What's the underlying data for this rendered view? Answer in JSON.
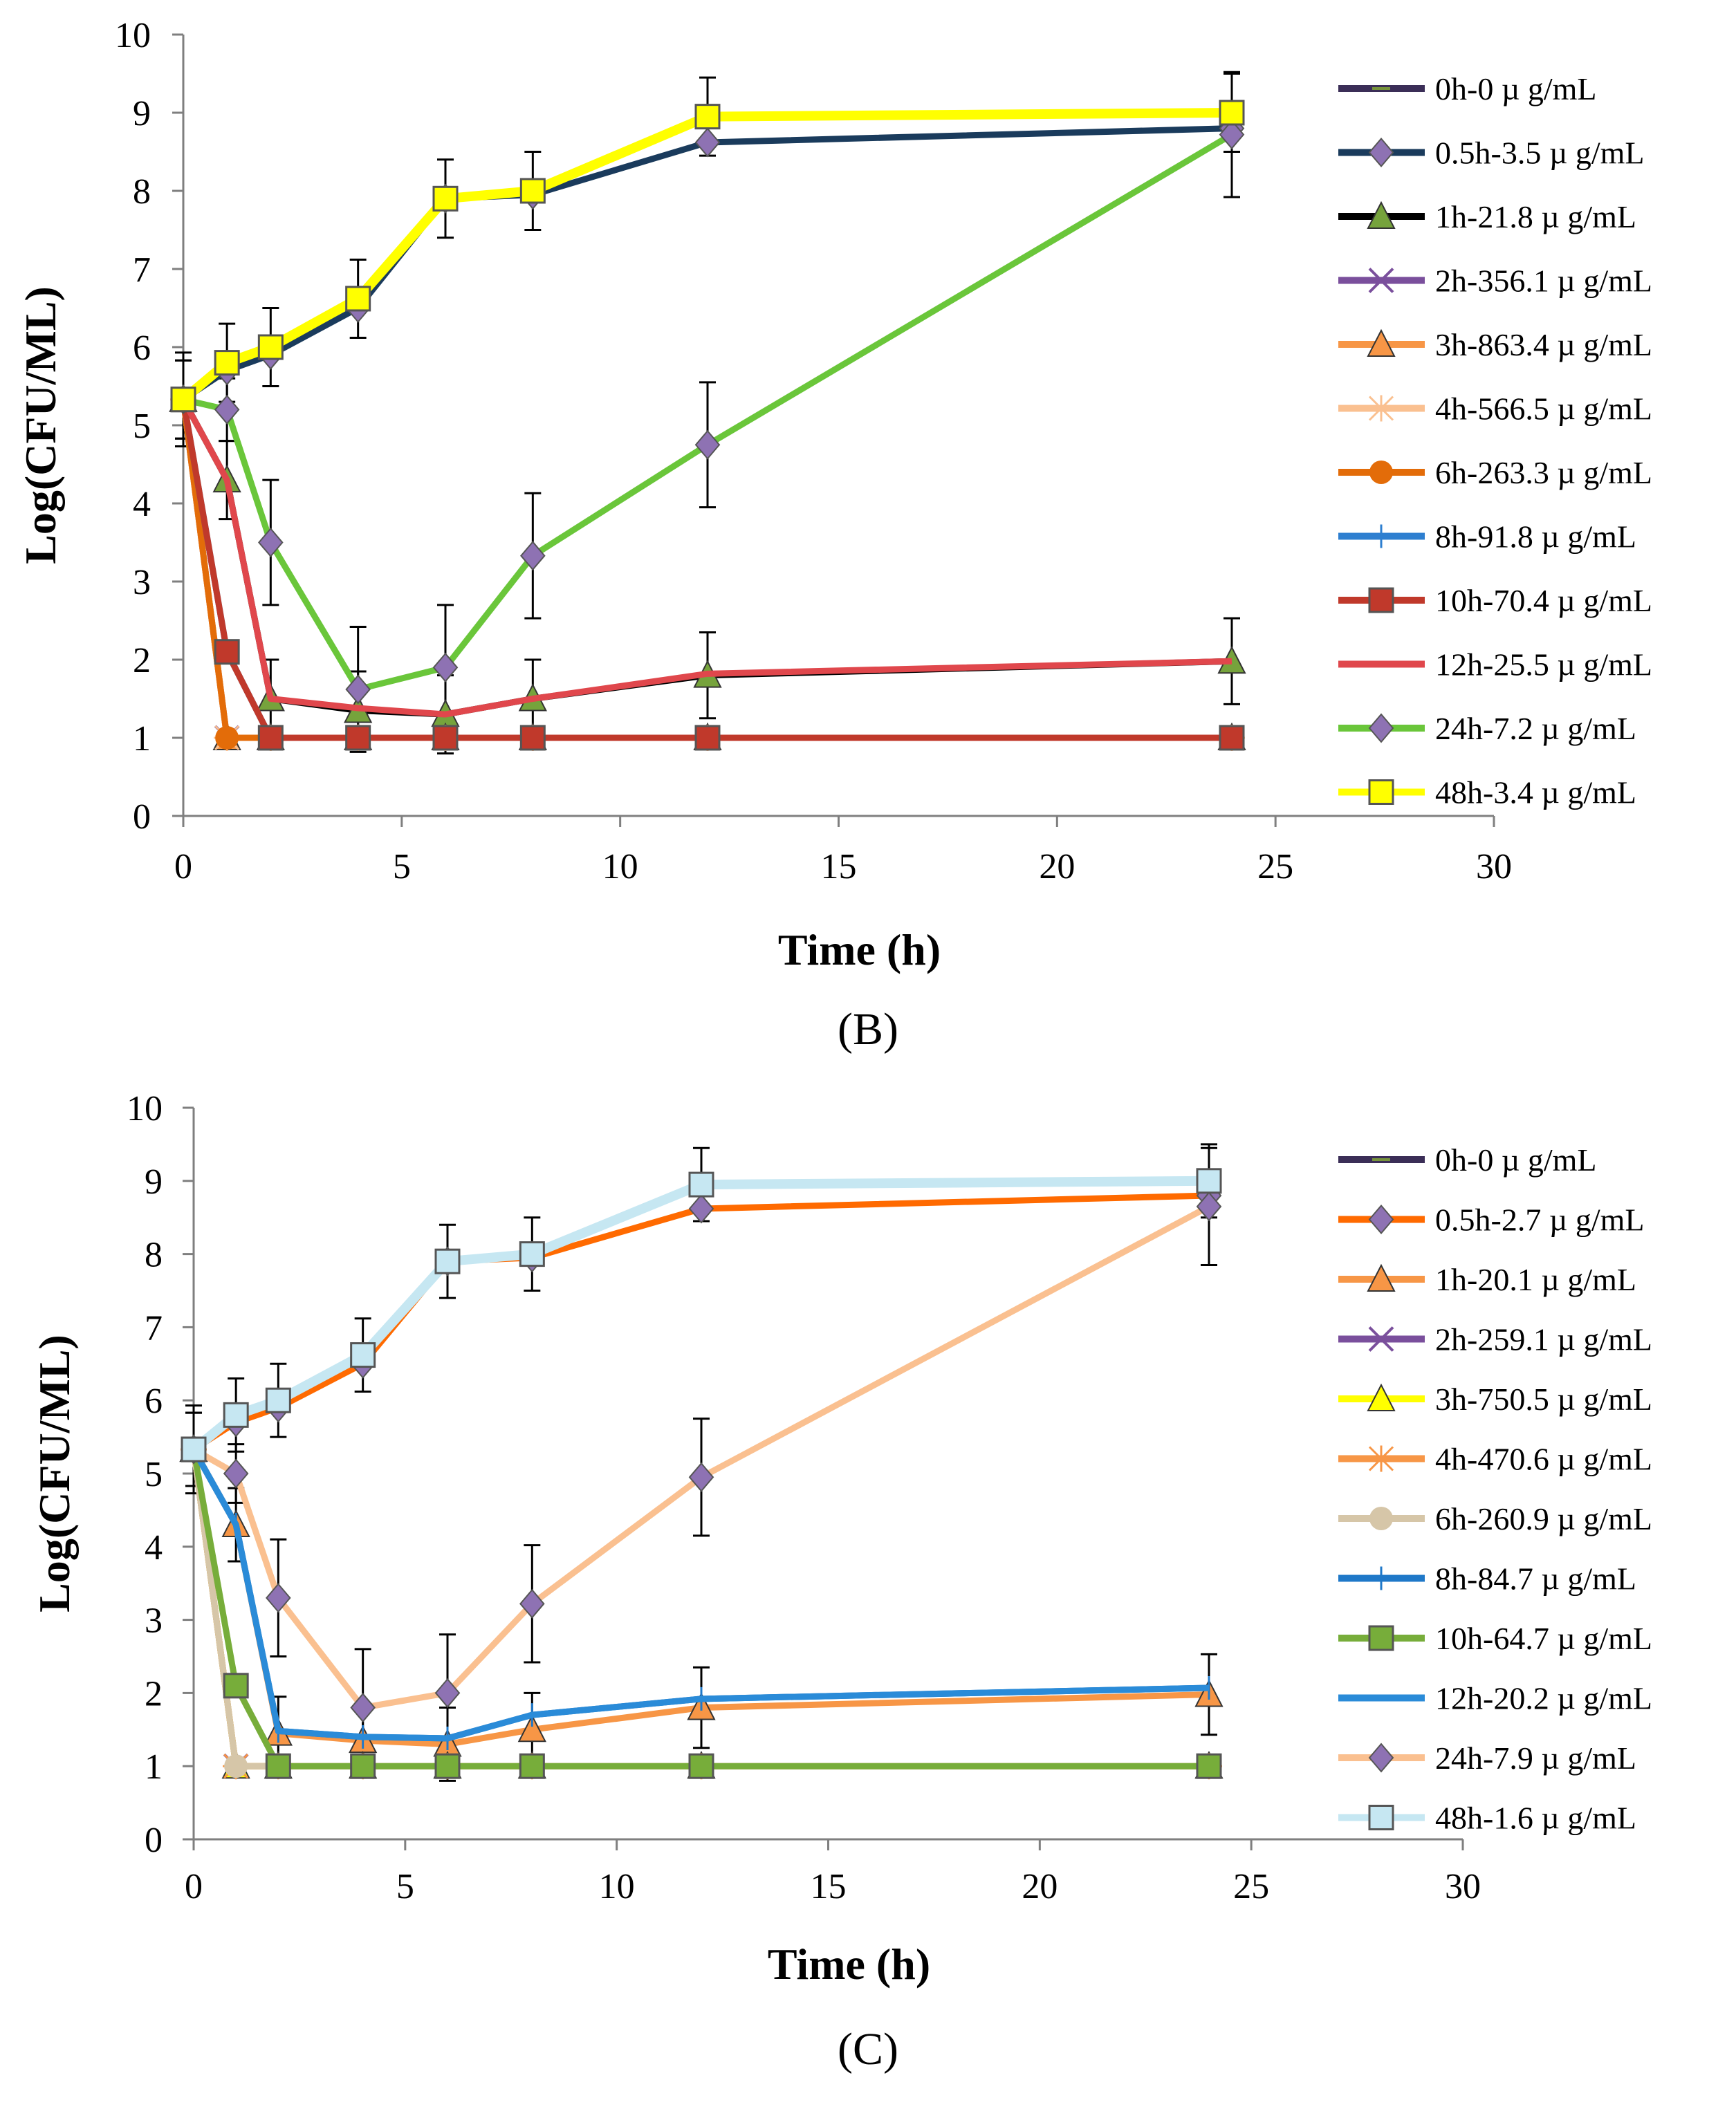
{
  "chart_data": [
    {
      "type": "line",
      "panel_label": "(B)",
      "title": "",
      "xlabel": "Time (h)",
      "ylabel": "Log(CFU/ML)",
      "xlim": [
        0,
        30
      ],
      "ylim": [
        0,
        10
      ],
      "xticks": [
        "0",
        "5",
        "10",
        "15",
        "20",
        "25",
        "30"
      ],
      "yticks": [
        "0",
        "1",
        "2",
        "3",
        "4",
        "5",
        "6",
        "7",
        "8",
        "9",
        "10"
      ],
      "legend_position": "right",
      "series": [
        {
          "name": "0h-0 µ g/mL",
          "color": "#3b2e57",
          "marker": "dash",
          "x": [
            0,
            1,
            2,
            4,
            6,
            8,
            12,
            24
          ],
          "y": [
            5.33,
            5.8,
            6.0,
            6.62,
            7.9,
            8.0,
            8.95,
            9.0
          ],
          "err": [
            0,
            0,
            0,
            0,
            0,
            0,
            0,
            0
          ]
        },
        {
          "name": "0.5h-3.5 µ g/mL",
          "color": "#1a3b5c",
          "marker": "diamond",
          "x": [
            0,
            1,
            2,
            4,
            6,
            8,
            12,
            24
          ],
          "y": [
            5.33,
            5.7,
            5.9,
            6.5,
            7.9,
            7.95,
            8.62,
            8.8
          ],
          "err": [
            0,
            0,
            0,
            0,
            0,
            0,
            0,
            0
          ]
        },
        {
          "name": "1h-21.8 µ g/mL",
          "color": "#000000",
          "marker": "triangle",
          "x": [
            0,
            1,
            2,
            4,
            6,
            8,
            12,
            24
          ],
          "y": [
            5.33,
            4.3,
            1.5,
            1.35,
            1.3,
            1.5,
            1.8,
            1.98
          ],
          "err": [
            0.6,
            0.5,
            0.5,
            0.5,
            0.5,
            0.5,
            0.55,
            0.55
          ]
        },
        {
          "name": "2h-356.1 µ g/mL",
          "color": "#7a4f9c",
          "marker": "x",
          "x": [
            0,
            1,
            2,
            4,
            6,
            8,
            12,
            24
          ],
          "y": [
            5.33,
            1.0,
            1.0,
            1.0,
            1.0,
            1.0,
            1.0,
            1.0
          ],
          "err": [
            0,
            0,
            0,
            0,
            0,
            0,
            0,
            0
          ]
        },
        {
          "name": "3h-863.4 µ g/mL",
          "color": "#f79646",
          "marker": "triangle",
          "x": [
            0,
            1,
            2,
            4,
            6,
            8,
            12,
            24
          ],
          "y": [
            5.33,
            1.0,
            1.0,
            1.0,
            1.0,
            1.0,
            1.0,
            1.0
          ],
          "err": [
            0,
            0,
            0,
            0,
            0,
            0,
            0,
            0
          ]
        },
        {
          "name": "4h-566.5 µ g/mL",
          "color": "#fac090",
          "marker": "star",
          "x": [
            0,
            1,
            2,
            4,
            6,
            8,
            12,
            24
          ],
          "y": [
            5.33,
            1.0,
            1.0,
            1.0,
            1.0,
            1.0,
            1.0,
            1.0
          ],
          "err": [
            0,
            0,
            0,
            0,
            0,
            0,
            0,
            0
          ]
        },
        {
          "name": "6h-263.3 µ g/mL",
          "color": "#e36c09",
          "marker": "circle",
          "x": [
            0,
            1,
            2,
            4,
            6,
            8,
            12,
            24
          ],
          "y": [
            5.33,
            1.0,
            1.0,
            1.0,
            1.0,
            1.0,
            1.0,
            1.0
          ],
          "err": [
            0,
            0,
            0,
            0,
            0,
            0,
            0,
            0
          ]
        },
        {
          "name": "8h-91.8 µ g/mL",
          "color": "#2e7fd0",
          "marker": "plus",
          "x": [
            0,
            1,
            2,
            4,
            6,
            8,
            12,
            24
          ],
          "y": [
            5.33,
            2.1,
            1.0,
            1.0,
            1.0,
            1.0,
            1.0,
            1.0
          ],
          "err": [
            0,
            0,
            0,
            0,
            0,
            0,
            0,
            0
          ]
        },
        {
          "name": "10h-70.4 µ g/mL",
          "color": "#c0392b",
          "marker": "square",
          "x": [
            0,
            1,
            2,
            4,
            6,
            8,
            12,
            24
          ],
          "y": [
            5.33,
            2.1,
            1.0,
            1.0,
            1.0,
            1.0,
            1.0,
            1.0
          ],
          "err": [
            0,
            0,
            0,
            0,
            0,
            0,
            0,
            0
          ]
        },
        {
          "name": "12h-25.5 µ g/mL",
          "color": "#e0474c",
          "marker": "none",
          "x": [
            0,
            1,
            2,
            4,
            6,
            8,
            12,
            24
          ],
          "y": [
            5.33,
            4.3,
            1.5,
            1.38,
            1.3,
            1.5,
            1.82,
            1.98
          ],
          "err": [
            0,
            0,
            0,
            0,
            0,
            0,
            0,
            0
          ]
        },
        {
          "name": "24h-7.2 µ g/mL",
          "color": "#6ac63a",
          "marker": "diamond",
          "x": [
            0,
            1,
            2,
            4,
            6,
            8,
            12,
            24
          ],
          "y": [
            5.33,
            5.2,
            3.5,
            1.62,
            1.9,
            3.33,
            4.75,
            8.72
          ],
          "err": [
            0.5,
            0.4,
            0.8,
            0.8,
            0.8,
            0.8,
            0.8,
            0.8
          ]
        },
        {
          "name": "48h-3.4 µ g/mL",
          "color": "#ffff00",
          "marker": "square",
          "x": [
            0,
            1,
            2,
            4,
            6,
            8,
            12,
            24
          ],
          "y": [
            5.33,
            5.8,
            6.0,
            6.62,
            7.9,
            8.0,
            8.95,
            9.0
          ],
          "err": [
            0.5,
            0.5,
            0.5,
            0.5,
            0.5,
            0.5,
            0.5,
            0.5
          ]
        }
      ]
    },
    {
      "type": "line",
      "panel_label": "(C)",
      "title": "",
      "xlabel": "Time (h)",
      "ylabel": "Log(CFU/ML)",
      "xlim": [
        0,
        30
      ],
      "ylim": [
        0,
        10
      ],
      "xticks": [
        "0",
        "5",
        "10",
        "15",
        "20",
        "25",
        "30"
      ],
      "yticks": [
        "0",
        "1",
        "2",
        "3",
        "4",
        "5",
        "6",
        "7",
        "8",
        "9",
        "10"
      ],
      "legend_position": "right",
      "series": [
        {
          "name": "0h-0 µ g/mL",
          "color": "#3b2e57",
          "marker": "dash",
          "x": [
            0,
            1,
            2,
            4,
            6,
            8,
            12,
            24
          ],
          "y": [
            5.33,
            5.8,
            6.0,
            6.62,
            7.9,
            8.0,
            8.95,
            9.0
          ],
          "err": [
            0,
            0,
            0,
            0,
            0,
            0,
            0,
            0
          ]
        },
        {
          "name": "0.5h-2.7 µ g/mL",
          "color": "#ff6a00",
          "marker": "diamond",
          "x": [
            0,
            1,
            2,
            4,
            6,
            8,
            12,
            24
          ],
          "y": [
            5.33,
            5.7,
            5.9,
            6.5,
            7.9,
            7.95,
            8.62,
            8.8
          ],
          "err": [
            0,
            0,
            0,
            0,
            0,
            0,
            0,
            0
          ]
        },
        {
          "name": "1h-20.1 µ g/mL",
          "color": "#f79646",
          "marker": "triangle",
          "x": [
            0,
            1,
            2,
            4,
            6,
            8,
            12,
            24
          ],
          "y": [
            5.33,
            4.3,
            1.45,
            1.35,
            1.3,
            1.5,
            1.8,
            1.98
          ],
          "err": [
            0.6,
            0.5,
            0.5,
            0.5,
            0.5,
            0.5,
            0.55,
            0.55
          ]
        },
        {
          "name": "2h-259.1 µ g/mL",
          "color": "#7a4f9c",
          "marker": "x",
          "x": [
            0,
            1,
            2,
            4,
            6,
            8,
            12,
            24
          ],
          "y": [
            5.33,
            1.0,
            1.0,
            1.0,
            1.0,
            1.0,
            1.0,
            1.0
          ],
          "err": [
            0,
            0,
            0,
            0,
            0,
            0,
            0,
            0
          ]
        },
        {
          "name": "3h-750.5 µ g/mL",
          "color": "#ffff00",
          "marker": "triangle",
          "x": [
            0,
            1,
            2,
            4,
            6,
            8,
            12,
            24
          ],
          "y": [
            5.33,
            1.0,
            1.0,
            1.0,
            1.0,
            1.0,
            1.0,
            1.0
          ],
          "err": [
            0,
            0,
            0,
            0,
            0,
            0,
            0,
            0
          ]
        },
        {
          "name": "4h-470.6 µ g/mL",
          "color": "#f79646",
          "marker": "star",
          "x": [
            0,
            1,
            2,
            4,
            6,
            8,
            12,
            24
          ],
          "y": [
            5.33,
            1.0,
            1.0,
            1.0,
            1.0,
            1.0,
            1.0,
            1.0
          ],
          "err": [
            0,
            0,
            0,
            0,
            0,
            0,
            0,
            0
          ]
        },
        {
          "name": "6h-260.9 µ g/mL",
          "color": "#d6c6a8",
          "marker": "circle",
          "x": [
            0,
            1,
            2,
            4,
            6,
            8,
            12,
            24
          ],
          "y": [
            5.33,
            1.0,
            1.0,
            1.0,
            1.0,
            1.0,
            1.0,
            1.0
          ],
          "err": [
            0,
            0,
            0,
            0,
            0,
            0,
            0,
            0
          ]
        },
        {
          "name": "8h-84.7 µ g/mL",
          "color": "#1f78c8",
          "marker": "plus",
          "x": [
            0,
            1,
            2,
            4,
            6,
            8,
            12,
            24
          ],
          "y": [
            5.33,
            4.3,
            1.48,
            1.4,
            1.38,
            1.7,
            1.92,
            2.07
          ],
          "err": [
            0,
            0,
            0,
            0,
            0,
            0,
            0,
            0
          ]
        },
        {
          "name": "10h-64.7 µ g/mL",
          "color": "#77ad3a",
          "marker": "square",
          "x": [
            0,
            1,
            2,
            4,
            6,
            8,
            12,
            24
          ],
          "y": [
            5.33,
            2.1,
            1.0,
            1.0,
            1.0,
            1.0,
            1.0,
            1.0
          ],
          "err": [
            0,
            0,
            0,
            0,
            0,
            0,
            0,
            0
          ]
        },
        {
          "name": "12h-20.2 µ g/mL",
          "color": "#2a8bd8",
          "marker": "none",
          "x": [
            0,
            1,
            2,
            4,
            6,
            8,
            12,
            24
          ],
          "y": [
            5.33,
            4.3,
            1.48,
            1.4,
            1.38,
            1.7,
            1.92,
            2.07
          ],
          "err": [
            0,
            0,
            0,
            0,
            0,
            0,
            0,
            0
          ]
        },
        {
          "name": "24h-7.9 µ g/mL",
          "color": "#fac090",
          "marker": "diamond",
          "x": [
            0,
            1,
            2,
            4,
            6,
            8,
            12,
            24
          ],
          "y": [
            5.33,
            5.0,
            3.3,
            1.8,
            2.0,
            3.22,
            4.95,
            8.65
          ],
          "err": [
            0.5,
            0.4,
            0.8,
            0.8,
            0.8,
            0.8,
            0.8,
            0.8
          ]
        },
        {
          "name": "48h-1.6 µ g/mL",
          "color": "#c6e7f2",
          "marker": "square",
          "x": [
            0,
            1,
            2,
            4,
            6,
            8,
            12,
            24
          ],
          "y": [
            5.33,
            5.8,
            6.0,
            6.62,
            7.9,
            8.0,
            8.95,
            9.0
          ],
          "err": [
            0.5,
            0.5,
            0.5,
            0.5,
            0.5,
            0.5,
            0.5,
            0.5
          ]
        }
      ]
    }
  ]
}
